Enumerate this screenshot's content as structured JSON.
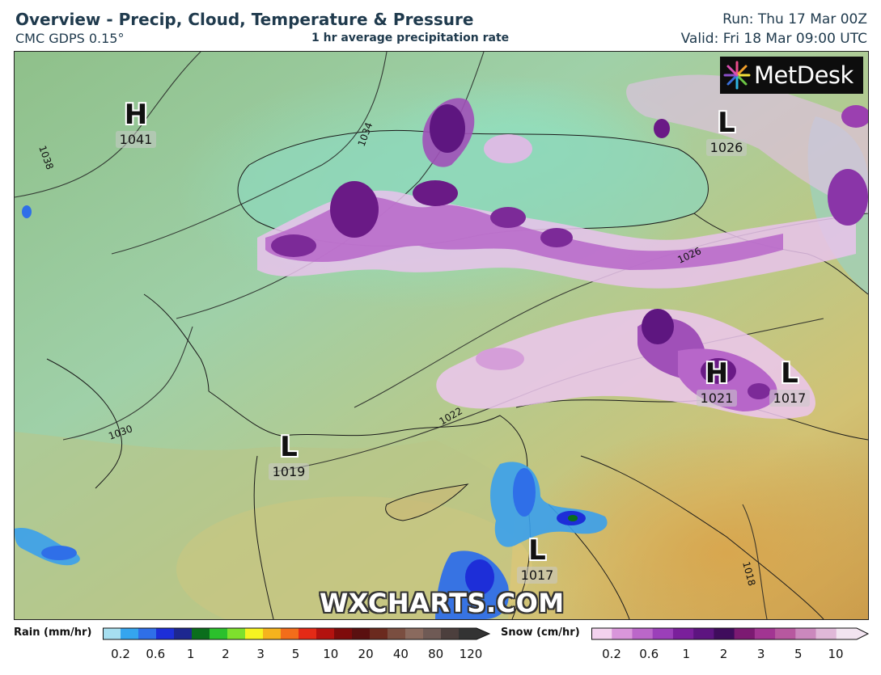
{
  "header": {
    "title": "Overview - Precip, Cloud, Temperature & Pressure",
    "model": "CMC GDPS 0.15°",
    "field": "1 hr average precipitation rate",
    "run": "Run: Thu 17 Mar 00Z",
    "valid": "Valid: Fri 18 Mar 09:00 UTC"
  },
  "brand": {
    "logo": "MetDesk",
    "watermark": "WXCHARTS.COM"
  },
  "pressure_systems": [
    {
      "type": "H",
      "value": "1041"
    },
    {
      "type": "L",
      "value": "1026"
    },
    {
      "type": "H",
      "value": "1021"
    },
    {
      "type": "L",
      "value": "1017"
    },
    {
      "type": "L",
      "value": "1019"
    },
    {
      "type": "L",
      "value": "1017"
    }
  ],
  "isobar_labels": [
    "1038",
    "1034",
    "1026",
    "1022",
    "1018",
    "1030"
  ],
  "legend": {
    "rain": {
      "label": "Rain (mm/hr)",
      "ticks": [
        "0.2",
        "0.6",
        "1",
        "2",
        "3",
        "5",
        "10",
        "20",
        "40",
        "80",
        "120"
      ],
      "colors": [
        "#a6dff0",
        "#35a5ee",
        "#2f6fe8",
        "#1d2ed8",
        "#1d2790",
        "#0a6e1c",
        "#2bc02c",
        "#7ee02d",
        "#f6f321",
        "#f5b31d",
        "#f36d1a",
        "#e42a16",
        "#b3120f",
        "#7e0b0b",
        "#5a1010",
        "#6b2a1e",
        "#7a4e40",
        "#8a6a5e",
        "#6f5a55",
        "#4c3f3d",
        "#333333"
      ]
    },
    "snow": {
      "label": "Snow (cm/hr)",
      "ticks": [
        "0.2",
        "0.6",
        "1",
        "2",
        "3",
        "5",
        "10"
      ],
      "colors": [
        "#f3d2ee",
        "#d996da",
        "#bb67c9",
        "#9b3fb9",
        "#7a1f9b",
        "#5d1480",
        "#3f0c5c",
        "#7c1a72",
        "#a23592",
        "#b7589f",
        "#cb88bd",
        "#e0b8d8",
        "#f2e4f0"
      ]
    }
  }
}
